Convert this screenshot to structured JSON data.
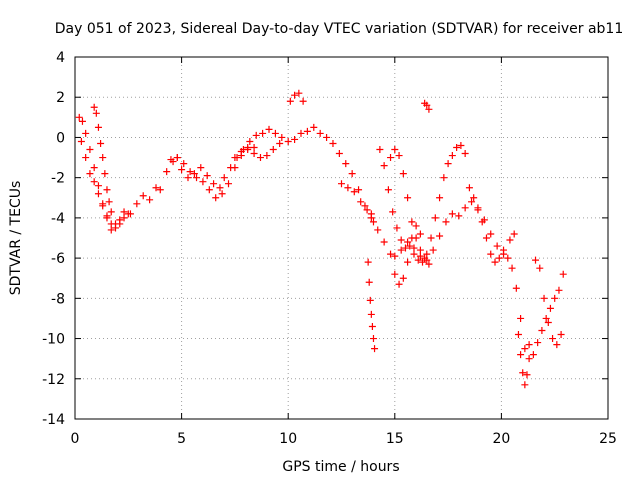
{
  "chart_data": {
    "type": "scatter",
    "title": "Day 051 of 2023, Sidereal Day-to-day VTEC variation (SDTVAR) for receiver ab11",
    "xlabel": "GPS time / hours",
    "ylabel": "SDTVAR / TECUs",
    "xlim": [
      0,
      25
    ],
    "ylim": [
      -14,
      4
    ],
    "x_ticks": [
      0,
      5,
      10,
      15,
      20,
      25
    ],
    "x_tick_labels": [
      "0",
      "5",
      "10",
      "15",
      "20",
      "25"
    ],
    "y_ticks": [
      -14,
      -12,
      -10,
      -8,
      -6,
      -4,
      -2,
      0,
      2,
      4
    ],
    "y_tick_labels": [
      "-14",
      "-12",
      "-10",
      "-8",
      "-6",
      "-4",
      "-2",
      "0",
      "2",
      "4"
    ],
    "grid": true,
    "legend": "none",
    "marker": "plus",
    "color": "#ff0000",
    "series": [
      {
        "segments": [
          {
            "x": [
              0.2,
              0.35,
              0.5,
              0.7,
              0.9,
              1.1,
              1.3,
              1.5,
              1.7,
              1.9,
              2.1,
              2.3,
              2.6,
              2.9,
              3.2,
              3.5,
              3.8,
              4.0,
              4.3,
              4.6,
              4.8,
              5.0,
              5.3,
              5.6,
              5.9,
              6.2,
              6.5,
              6.8,
              7.0,
              7.3,
              7.6,
              7.9,
              8.2,
              8.5,
              8.8,
              9.1,
              9.4,
              9.7,
              10.0,
              10.3,
              10.6,
              10.9,
              11.2,
              11.5,
              11.8,
              12.1,
              12.4,
              12.7,
              13.0,
              13.3,
              13.6,
              13.9,
              14.2,
              14.5,
              14.8,
              15.0,
              15.3,
              15.6,
              15.9,
              16.2,
              16.5,
              16.8,
              17.1,
              17.4,
              17.7,
              18.0,
              18.3,
              18.6,
              18.9,
              19.2,
              19.5,
              19.8,
              20.1,
              20.4,
              20.6
            ],
            "y": [
              1.0,
              0.8,
              0.2,
              -0.6,
              -1.5,
              -2.4,
              -3.3,
              -4.0,
              -4.6,
              -4.3,
              -4.1,
              -3.7,
              -3.8,
              -3.3,
              -2.9,
              -3.1,
              -2.5,
              -2.6,
              -1.7,
              -1.2,
              -1.0,
              -1.6,
              -2.0,
              -1.8,
              -1.5,
              -1.9,
              -2.3,
              -2.5,
              -2.0,
              -1.5,
              -1.0,
              -0.6,
              -0.2,
              0.1,
              0.2,
              0.4,
              0.2,
              0.0,
              -0.2,
              -0.1,
              0.2,
              0.3,
              0.5,
              0.2,
              0.0,
              -0.3,
              -0.8,
              -1.3,
              -1.8,
              -2.6,
              -3.4,
              -4.0,
              -4.6,
              -5.2,
              -5.8,
              -5.9,
              -5.6,
              -5.2,
              -5.5,
              -5.9,
              -6.1,
              -5.6,
              -4.9,
              -4.2,
              -3.8,
              -3.9,
              -3.5,
              -3.2,
              -3.6,
              -4.1,
              -4.8,
              -5.4,
              -5.6,
              -5.1,
              -4.8
            ]
          },
          {
            "x": [
              0.3,
              0.5,
              0.7,
              0.9,
              1.1,
              1.3,
              1.5,
              1.7,
              1.9,
              2.1,
              2.3,
              2.5
            ],
            "y": [
              -0.2,
              -1.0,
              -1.8,
              -2.2,
              -2.8,
              -3.4,
              -3.9,
              -4.3,
              -4.5,
              -4.3,
              -4.0,
              -3.8
            ]
          },
          {
            "x": [
              0.9,
              1.0,
              1.1,
              1.2,
              1.3,
              1.4,
              1.5,
              1.6,
              1.7
            ],
            "y": [
              1.5,
              1.2,
              0.5,
              -0.3,
              -1.0,
              -1.8,
              -2.6,
              -3.2,
              -3.7
            ]
          },
          {
            "x": [
              4.5,
              4.8,
              5.1,
              5.4,
              5.7,
              6.0,
              6.3,
              6.6,
              6.9,
              7.2,
              7.5,
              7.8,
              8.1,
              8.4
            ],
            "y": [
              -1.1,
              -1.0,
              -1.3,
              -1.7,
              -2.0,
              -2.2,
              -2.6,
              -3.0,
              -2.8,
              -2.3,
              -1.5,
              -0.9,
              -0.6,
              -0.5
            ]
          },
          {
            "x": [
              7.5,
              7.8,
              8.1,
              8.4,
              8.7,
              9.0,
              9.3,
              9.6
            ],
            "y": [
              -1.0,
              -0.7,
              -0.5,
              -0.8,
              -1.0,
              -0.9,
              -0.6,
              -0.3
            ]
          },
          {
            "x": [
              10.1,
              10.3,
              10.5,
              10.7
            ],
            "y": [
              1.8,
              2.1,
              2.2,
              1.8
            ]
          },
          {
            "x": [
              12.5,
              12.8,
              13.1,
              13.4,
              13.7,
              13.9,
              14.0
            ],
            "y": [
              -2.3,
              -2.5,
              -2.7,
              -3.2,
              -3.6,
              -3.8,
              -4.2
            ]
          },
          {
            "x": [
              13.75,
              13.8,
              13.85,
              13.9,
              13.95,
              14.0,
              14.05
            ],
            "y": [
              -6.2,
              -7.2,
              -8.1,
              -8.8,
              -9.4,
              -10.0,
              -10.5
            ]
          },
          {
            "x": [
              14.3,
              14.5,
              14.7,
              14.9,
              15.1,
              15.3,
              15.5,
              15.7,
              15.9,
              16.1,
              16.3,
              16.5,
              16.7,
              16.9,
              17.1,
              17.3,
              17.5,
              17.7,
              17.9,
              18.1,
              18.3
            ],
            "y": [
              -0.6,
              -1.4,
              -2.6,
              -3.7,
              -4.5,
              -5.1,
              -5.5,
              -5.4,
              -5.8,
              -6.1,
              -6.2,
              -5.8,
              -5.0,
              -4.0,
              -3.0,
              -2.0,
              -1.3,
              -0.9,
              -0.5,
              -0.4,
              -0.8
            ]
          },
          {
            "x": [
              14.8,
              15.0,
              15.2,
              15.4,
              15.6,
              15.8,
              16.0,
              16.2,
              16.4,
              16.6
            ],
            "y": [
              -1.0,
              -0.6,
              -0.9,
              -1.8,
              -3.0,
              -4.2,
              -5.0,
              -5.6,
              -6.0,
              -6.3
            ]
          },
          {
            "x": [
              15.0,
              15.2,
              15.4,
              15.6,
              15.8,
              16.0,
              16.2
            ],
            "y": [
              -6.8,
              -7.3,
              -7.0,
              -6.2,
              -5.0,
              -4.4,
              -4.8
            ]
          },
          {
            "x": [
              16.4,
              16.5,
              16.6
            ],
            "y": [
              1.7,
              1.6,
              1.4
            ]
          },
          {
            "x": [
              18.5,
              18.7,
              18.9,
              19.1,
              19.3,
              19.5,
              19.7,
              19.9,
              20.1,
              20.3,
              20.5,
              20.7,
              20.9,
              21.1
            ],
            "y": [
              -2.5,
              -3.0,
              -3.5,
              -4.2,
              -5.0,
              -5.8,
              -6.2,
              -6.0,
              -5.8,
              -6.0,
              -6.5,
              -7.5,
              -9.0,
              -10.5
            ]
          },
          {
            "x": [
              20.8,
              20.9,
              21.0,
              21.1,
              21.2,
              21.3
            ],
            "y": [
              -9.8,
              -10.8,
              -11.7,
              -12.3,
              -11.8,
              -11.0
            ]
          },
          {
            "x": [
              21.3,
              21.5,
              21.7,
              21.9,
              22.1,
              22.3,
              22.5,
              22.7,
              22.9
            ],
            "y": [
              -10.3,
              -10.8,
              -10.2,
              -9.6,
              -9.0,
              -8.5,
              -8.0,
              -7.6,
              -6.8
            ]
          },
          {
            "x": [
              21.6,
              21.8,
              22.0,
              22.2,
              22.4,
              22.6,
              22.8
            ],
            "y": [
              -6.1,
              -6.5,
              -8.0,
              -9.2,
              -10.0,
              -10.3,
              -9.8
            ]
          }
        ]
      }
    ]
  }
}
